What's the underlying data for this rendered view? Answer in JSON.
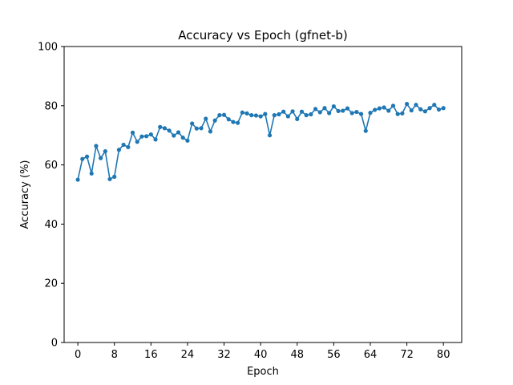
{
  "chart_data": {
    "type": "line",
    "title": "Accuracy vs Epoch  (gfnet-b)",
    "xlabel": "Epoch",
    "ylabel": "Accuracy (%)",
    "xlim": [
      -3,
      84
    ],
    "ylim": [
      0,
      100
    ],
    "xticks": [
      0,
      8,
      16,
      24,
      32,
      40,
      48,
      56,
      64,
      72,
      80
    ],
    "yticks": [
      0,
      20,
      40,
      60,
      80,
      100
    ],
    "grid": false,
    "color": "#1f77b4",
    "marker": "circle",
    "x": [
      0,
      1,
      2,
      3,
      4,
      5,
      6,
      7,
      8,
      9,
      10,
      11,
      12,
      13,
      14,
      15,
      16,
      17,
      18,
      19,
      20,
      21,
      22,
      23,
      24,
      25,
      26,
      27,
      28,
      29,
      30,
      31,
      32,
      33,
      34,
      35,
      36,
      37,
      38,
      39,
      40,
      41,
      42,
      43,
      44,
      45,
      46,
      47,
      48,
      49,
      50,
      51,
      52,
      53,
      54,
      55,
      56,
      57,
      58,
      59,
      60,
      61,
      62,
      63,
      64,
      65,
      66,
      67,
      68,
      69,
      70,
      71,
      72,
      73,
      74,
      75,
      76,
      77,
      78,
      79,
      80
    ],
    "y": [
      55.0,
      62.0,
      62.8,
      57.1,
      66.4,
      62.3,
      64.6,
      55.2,
      56.0,
      65.1,
      66.8,
      66.0,
      70.9,
      67.8,
      69.6,
      69.7,
      70.3,
      68.6,
      72.8,
      72.4,
      71.6,
      69.9,
      71.0,
      69.2,
      68.2,
      74.0,
      72.3,
      72.4,
      75.6,
      71.3,
      75.0,
      76.8,
      76.9,
      75.4,
      74.5,
      74.2,
      77.7,
      77.4,
      76.8,
      76.7,
      76.4,
      77.2,
      70.0,
      76.8,
      77.1,
      78.0,
      76.4,
      78.1,
      75.5,
      78.0,
      76.8,
      77.1,
      78.9,
      77.8,
      79.2,
      77.5,
      79.8,
      78.2,
      78.3,
      79.1,
      77.5,
      77.9,
      77.2,
      71.5,
      77.6,
      78.6,
      79.1,
      79.4,
      78.3,
      80.0,
      77.2,
      77.4,
      80.6,
      78.4,
      80.3,
      78.8,
      78.1,
      79.2,
      80.3,
      78.7,
      79.2
    ]
  }
}
